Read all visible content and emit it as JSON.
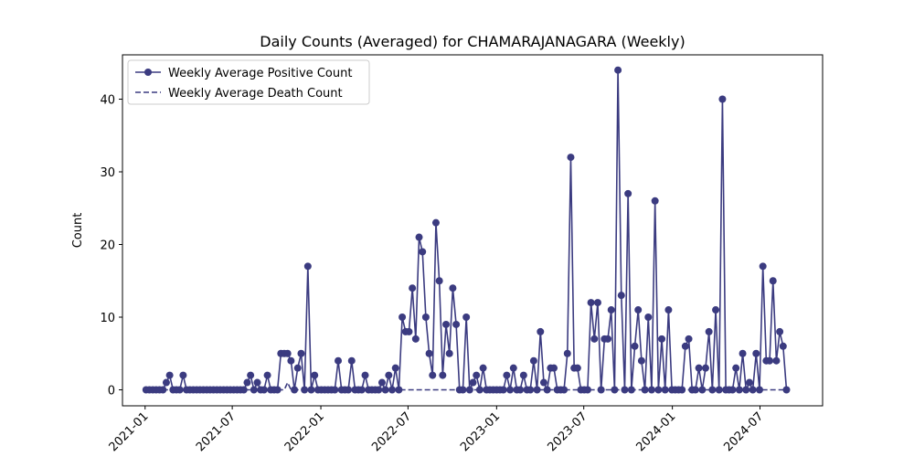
{
  "chart_data": {
    "type": "line",
    "title": "Daily Counts (Averaged) for CHAMARAJANAGARA (Weekly)",
    "ylabel": "Count",
    "legend": "upper left",
    "grid": false,
    "x": [
      "2021-01-03",
      "2021-01-10",
      "2021-01-17",
      "2021-01-24",
      "2021-01-31",
      "2021-02-07",
      "2021-02-14",
      "2021-02-21",
      "2021-02-28",
      "2021-03-07",
      "2021-03-14",
      "2021-03-21",
      "2021-03-28",
      "2021-04-04",
      "2021-04-11",
      "2021-04-18",
      "2021-04-25",
      "2021-05-02",
      "2021-05-09",
      "2021-05-16",
      "2021-05-23",
      "2021-05-30",
      "2021-06-06",
      "2021-06-13",
      "2021-06-20",
      "2021-06-27",
      "2021-07-04",
      "2021-07-11",
      "2021-07-18",
      "2021-07-25",
      "2021-08-01",
      "2021-08-08",
      "2021-08-15",
      "2021-08-22",
      "2021-08-29",
      "2021-09-05",
      "2021-09-12",
      "2021-09-19",
      "2021-09-26",
      "2021-10-03",
      "2021-10-10",
      "2021-10-17",
      "2021-10-24",
      "2021-10-31",
      "2021-11-07",
      "2021-11-14",
      "2021-11-21",
      "2021-11-28",
      "2021-12-05",
      "2021-12-12",
      "2021-12-19",
      "2021-12-26",
      "2022-01-02",
      "2022-01-09",
      "2022-01-16",
      "2022-01-23",
      "2022-01-30",
      "2022-02-06",
      "2022-02-13",
      "2022-02-20",
      "2022-02-27",
      "2022-03-06",
      "2022-03-13",
      "2022-03-20",
      "2022-03-27",
      "2022-04-03",
      "2022-04-10",
      "2022-04-17",
      "2022-04-24",
      "2022-05-01",
      "2022-05-08",
      "2022-05-15",
      "2022-05-22",
      "2022-05-29",
      "2022-06-05",
      "2022-06-12",
      "2022-06-19",
      "2022-06-26",
      "2022-07-03",
      "2022-07-10",
      "2022-07-17",
      "2022-07-24",
      "2022-07-31",
      "2022-08-07",
      "2022-08-14",
      "2022-08-21",
      "2022-08-28",
      "2022-09-04",
      "2022-09-11",
      "2022-09-18",
      "2022-09-25",
      "2022-10-02",
      "2022-10-09",
      "2022-10-16",
      "2022-10-23",
      "2022-10-30",
      "2022-11-06",
      "2022-11-13",
      "2022-11-20",
      "2022-11-27",
      "2022-12-04",
      "2022-12-11",
      "2022-12-18",
      "2022-12-25",
      "2023-01-01",
      "2023-01-08",
      "2023-01-15",
      "2023-01-22",
      "2023-01-29",
      "2023-02-05",
      "2023-02-12",
      "2023-02-19",
      "2023-02-26",
      "2023-03-05",
      "2023-03-12",
      "2023-03-19",
      "2023-03-26",
      "2023-04-02",
      "2023-04-09",
      "2023-04-16",
      "2023-04-23",
      "2023-04-30",
      "2023-05-07",
      "2023-05-14",
      "2023-05-21",
      "2023-05-28",
      "2023-06-04",
      "2023-06-11",
      "2023-06-18",
      "2023-06-25",
      "2023-07-02",
      "2023-07-09",
      "2023-07-16",
      "2023-07-23",
      "2023-07-30",
      "2023-08-06",
      "2023-08-13",
      "2023-08-20",
      "2023-08-27",
      "2023-09-03",
      "2023-09-10",
      "2023-09-17",
      "2023-09-24",
      "2023-10-01",
      "2023-10-08",
      "2023-10-15",
      "2023-10-22",
      "2023-10-29",
      "2023-11-05",
      "2023-11-12",
      "2023-11-19",
      "2023-11-26",
      "2023-12-03",
      "2023-12-10",
      "2023-12-17",
      "2023-12-24",
      "2023-12-31",
      "2024-01-07",
      "2024-01-14",
      "2024-01-21",
      "2024-01-28",
      "2024-02-04",
      "2024-02-11",
      "2024-02-18",
      "2024-02-25",
      "2024-03-03",
      "2024-03-10",
      "2024-03-17",
      "2024-03-24",
      "2024-03-31",
      "2024-04-07",
      "2024-04-14",
      "2024-04-21",
      "2024-04-28",
      "2024-05-05",
      "2024-05-12",
      "2024-05-19",
      "2024-05-26",
      "2024-06-02",
      "2024-06-09",
      "2024-06-16",
      "2024-06-23",
      "2024-06-30",
      "2024-07-07",
      "2024-07-14",
      "2024-07-21",
      "2024-07-28",
      "2024-08-04",
      "2024-08-11",
      "2024-08-18",
      "2024-08-25"
    ],
    "series": [
      {
        "name": "Weekly Average Positive Count",
        "color": "#3b3b80",
        "marker": "o",
        "linestyle": "solid",
        "values": [
          0,
          0,
          0,
          0,
          0,
          0,
          1,
          2,
          0,
          0,
          0,
          2,
          0,
          0,
          0,
          0,
          0,
          0,
          0,
          0,
          0,
          0,
          0,
          0,
          0,
          0,
          0,
          0,
          0,
          0,
          1,
          2,
          0,
          1,
          0,
          0,
          2,
          0,
          0,
          0,
          5,
          5,
          5,
          4,
          0,
          3,
          5,
          0,
          17,
          0,
          2,
          0,
          0,
          0,
          0,
          0,
          0,
          4,
          0,
          0,
          0,
          4,
          0,
          0,
          0,
          2,
          0,
          0,
          0,
          0,
          1,
          0,
          2,
          0,
          3,
          0,
          10,
          8,
          8,
          14,
          7,
          21,
          19,
          10,
          5,
          2,
          23,
          15,
          2,
          9,
          5,
          14,
          9,
          0,
          0,
          10,
          0,
          1,
          2,
          0,
          3,
          0,
          0,
          0,
          0,
          0,
          0,
          2,
          0,
          3,
          0,
          0,
          2,
          0,
          0,
          4,
          0,
          8,
          1,
          0,
          3,
          3,
          0,
          0,
          0,
          5,
          32,
          3,
          3,
          0,
          0,
          0,
          12,
          7,
          12,
          0,
          7,
          7,
          11,
          0,
          44,
          13,
          0,
          27,
          0,
          6,
          11,
          4,
          0,
          10,
          0,
          26,
          0,
          7,
          0,
          11,
          0,
          0,
          0,
          0,
          6,
          7,
          0,
          0,
          3,
          0,
          3,
          8,
          0,
          11,
          0,
          40,
          0,
          0,
          0,
          3,
          0,
          5,
          0,
          1,
          0,
          5,
          0,
          17,
          4,
          4,
          15,
          4,
          8,
          6,
          0
        ]
      },
      {
        "name": "Weekly Average Death Count",
        "color": "#3b3b80",
        "linestyle": "dashed",
        "values": [
          0,
          0,
          0,
          0,
          0,
          0,
          0,
          0,
          0,
          0,
          0,
          0,
          0,
          0,
          0,
          0,
          0,
          0,
          0,
          0,
          0,
          0,
          0,
          0,
          0,
          0,
          0,
          0,
          0,
          0,
          0,
          0,
          0,
          0,
          0,
          0,
          0,
          0,
          0,
          0,
          0,
          0,
          1,
          0,
          0,
          0,
          0,
          0,
          0,
          0,
          0,
          0,
          0,
          0,
          0,
          0,
          0,
          0,
          0,
          0,
          0,
          0,
          0,
          0,
          0,
          0,
          0,
          0,
          0,
          0,
          0,
          0,
          0,
          0,
          0,
          0,
          0,
          0,
          0,
          0,
          0,
          0,
          0,
          0,
          0,
          0,
          0,
          0,
          0,
          0,
          0,
          0,
          0,
          0,
          0,
          0,
          0,
          0,
          0,
          0,
          0,
          0,
          0,
          0,
          0,
          0,
          0,
          0,
          0,
          0,
          0,
          0,
          0,
          0,
          0,
          0,
          0,
          0,
          0,
          0,
          0,
          0,
          0,
          0,
          0,
          0,
          0,
          0,
          0,
          0,
          0,
          0,
          0,
          0,
          0,
          0,
          0,
          0,
          0,
          0,
          0,
          0,
          0,
          0,
          0,
          0,
          0,
          0,
          0,
          0,
          0,
          0,
          0,
          0,
          0,
          0,
          0,
          0,
          0,
          0,
          0,
          0,
          0,
          0,
          0,
          0,
          0,
          0,
          0,
          0,
          0,
          0,
          0,
          0,
          0,
          0,
          0,
          0,
          0,
          0,
          0,
          0,
          0,
          0,
          0,
          0,
          0,
          0,
          0,
          0,
          0
        ]
      }
    ],
    "xlim": [
      "2020-11-15",
      "2024-11-08"
    ],
    "xticks": [
      {
        "value": "2021-01-01",
        "label": "2021-01"
      },
      {
        "value": "2021-07-01",
        "label": "2021-07"
      },
      {
        "value": "2022-01-01",
        "label": "2022-01"
      },
      {
        "value": "2022-07-01",
        "label": "2022-07"
      },
      {
        "value": "2023-01-01",
        "label": "2023-01"
      },
      {
        "value": "2023-07-01",
        "label": "2023-07"
      },
      {
        "value": "2024-01-01",
        "label": "2024-01"
      },
      {
        "value": "2024-07-01",
        "label": "2024-07"
      }
    ],
    "ylim": [
      -2.2,
      46.1
    ],
    "yticks": [
      0,
      10,
      20,
      30,
      40
    ]
  }
}
